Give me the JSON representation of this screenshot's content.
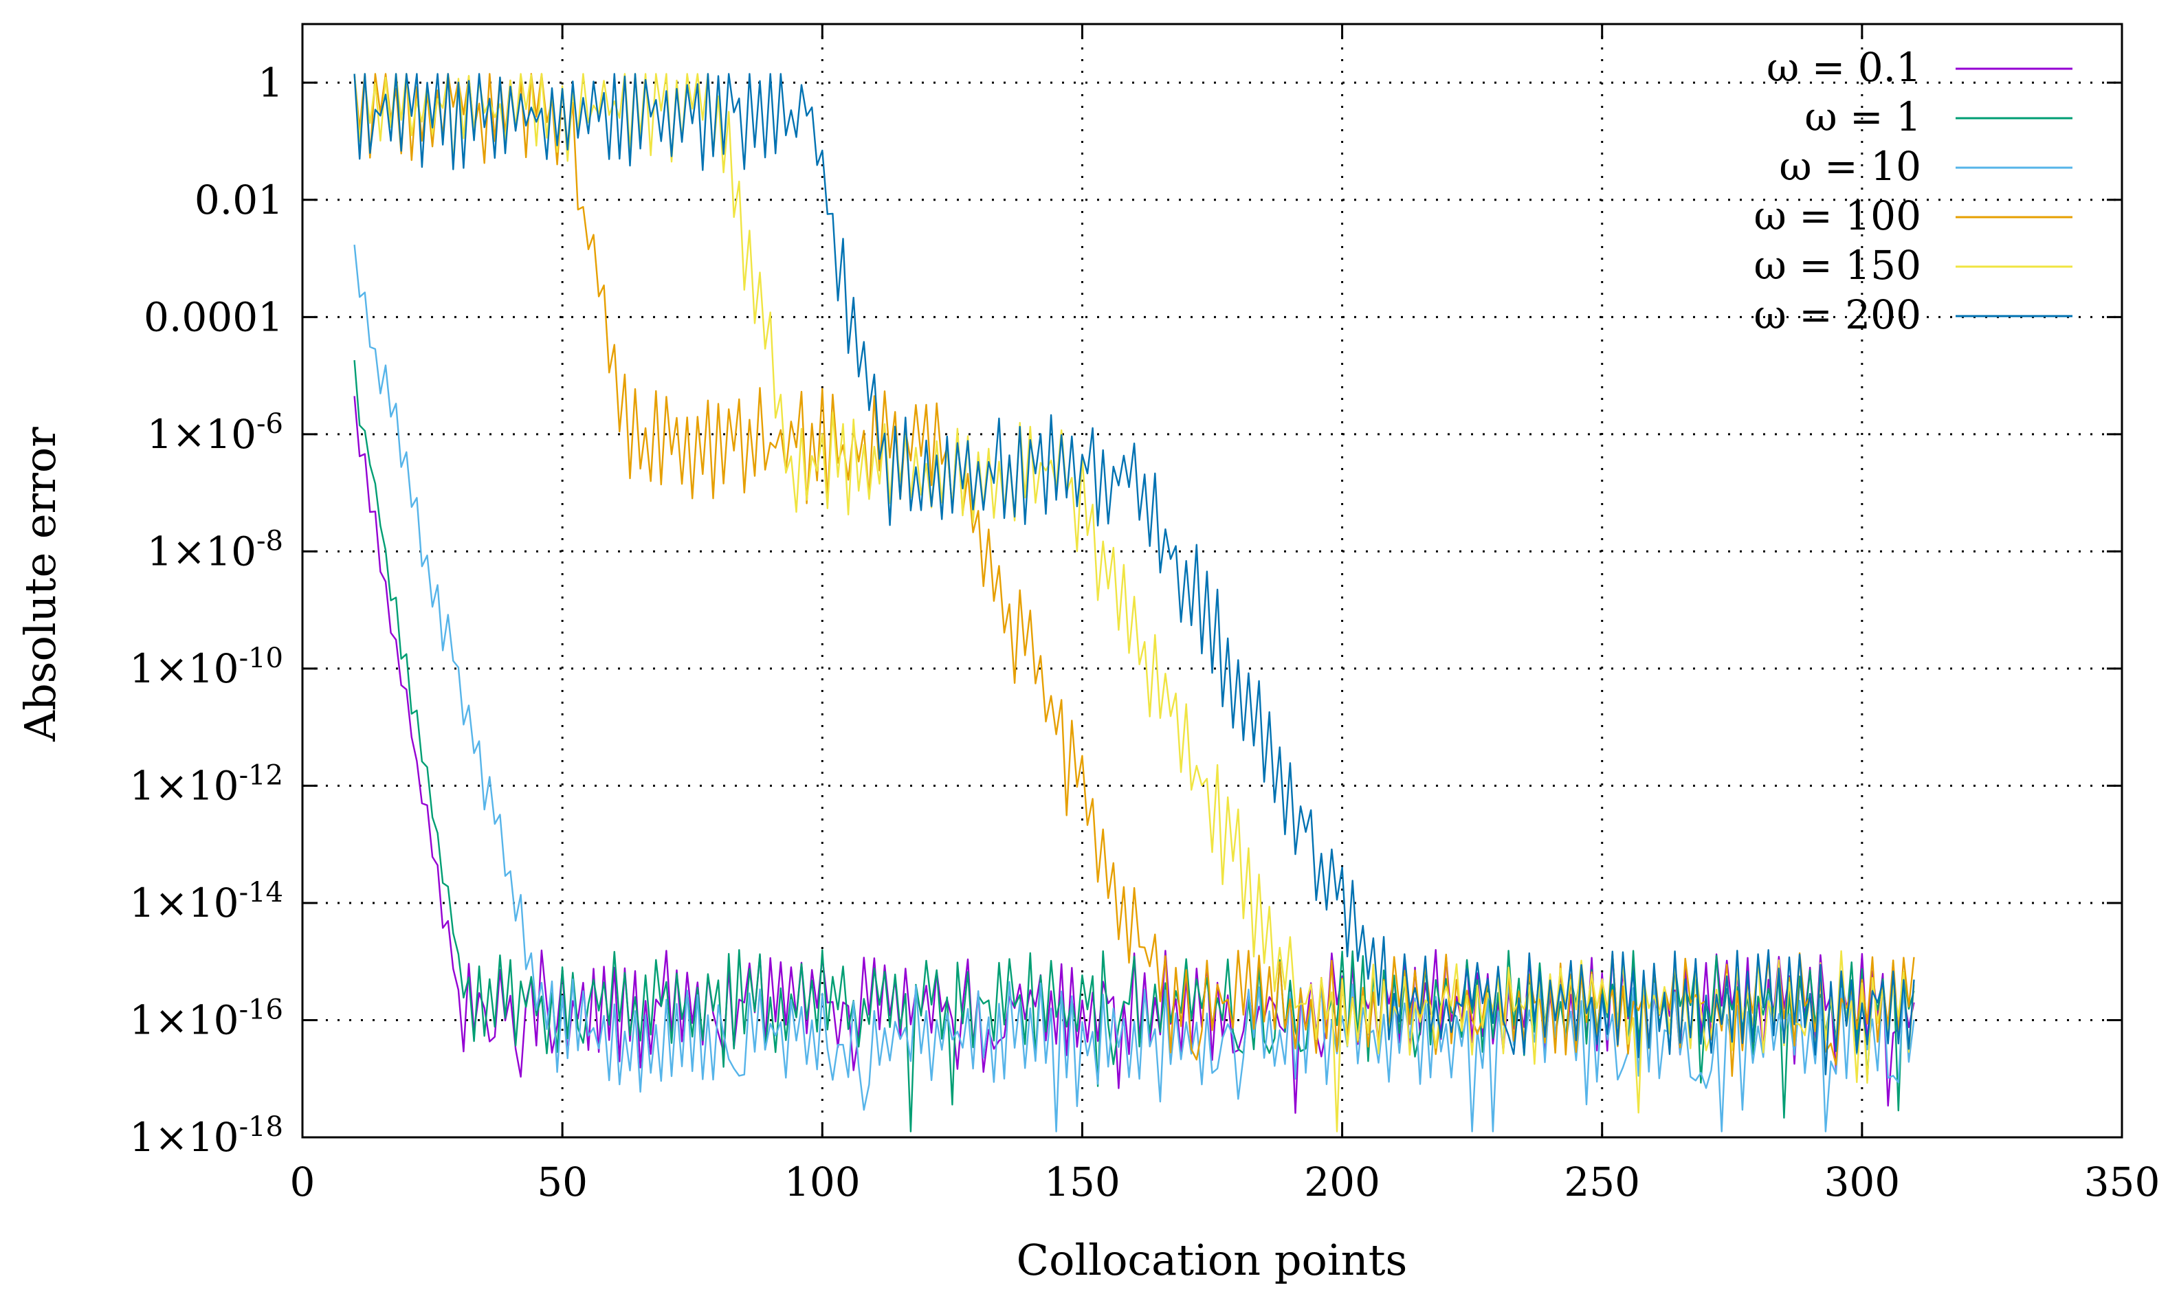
{
  "chart_data": {
    "type": "line",
    "title": "",
    "xlabel": "Collocation points",
    "ylabel": "Absolute error",
    "xlim": [
      0,
      350
    ],
    "ylim": [
      1e-18,
      10
    ],
    "yscale": "log",
    "grid": true,
    "legend_position": "top-right",
    "x_ticks": [
      {
        "value": 0,
        "label": "0"
      },
      {
        "value": 50,
        "label": "50"
      },
      {
        "value": 100,
        "label": "100"
      },
      {
        "value": 150,
        "label": "150"
      },
      {
        "value": 200,
        "label": "200"
      },
      {
        "value": 250,
        "label": "250"
      },
      {
        "value": 300,
        "label": "300"
      },
      {
        "value": 350,
        "label": "350"
      }
    ],
    "y_ticks": [
      {
        "value": 1,
        "base": "1",
        "exp": ""
      },
      {
        "value": 0.01,
        "base": "0.01",
        "exp": ""
      },
      {
        "value": 0.0001,
        "base": "0.0001",
        "exp": ""
      },
      {
        "value": 1e-06,
        "base": "1×10",
        "exp": "-6"
      },
      {
        "value": 1e-08,
        "base": "1×10",
        "exp": "-8"
      },
      {
        "value": 1e-10,
        "base": "1×10",
        "exp": "-10"
      },
      {
        "value": 1e-12,
        "base": "1×10",
        "exp": "-12"
      },
      {
        "value": 1e-14,
        "base": "1×10",
        "exp": "-14"
      },
      {
        "value": 1e-16,
        "base": "1×10",
        "exp": "-16"
      },
      {
        "value": 1e-18,
        "base": "1×10",
        "exp": "-18"
      }
    ],
    "series": [
      {
        "name": "ω = 0.1",
        "color": "#9400d3",
        "x_start": 10,
        "x_end": 310,
        "initial_log10": -5.6,
        "decay_per_point": -0.5,
        "floor_log10": -15.7,
        "oscillation": 0.35,
        "plateau_log10": null,
        "drop_start": null,
        "gaps": true
      },
      {
        "name": "ω = 1",
        "color": "#009e73",
        "x_start": 10,
        "x_end": 310,
        "initial_log10": -5.0,
        "decay_per_point": -0.5,
        "floor_log10": -15.7,
        "oscillation": 0.35,
        "plateau_log10": null,
        "drop_start": null,
        "gaps": false
      },
      {
        "name": "ω = 10",
        "color": "#56b4e9",
        "x_start": 10,
        "x_end": 310,
        "initial_log10": -3.2,
        "decay_per_point": -0.35,
        "floor_log10": -16.2,
        "oscillation": 0.55,
        "plateau_log10": null,
        "drop_start": null,
        "gaps": false
      },
      {
        "name": "ω = 100",
        "color": "#e69f00",
        "x_start": 10,
        "x_end": 310,
        "initial_log10": -0.4,
        "decay_per_point": -0.22,
        "floor_log10": -15.7,
        "oscillation": 1.0,
        "plateau_log10": -6.2,
        "drop_start": 50,
        "gaps": false
      },
      {
        "name": "ω = 150",
        "color": "#f0e442",
        "x_start": 10,
        "x_end": 310,
        "initial_log10": -0.4,
        "decay_per_point": -0.2,
        "floor_log10": -15.7,
        "oscillation": 1.0,
        "plateau_log10": -6.6,
        "drop_start": 80,
        "gaps": false
      },
      {
        "name": "ω = 200",
        "color": "#0072b2",
        "x_start": 10,
        "x_end": 310,
        "initial_log10": -0.5,
        "decay_per_point": -0.18,
        "floor_log10": -15.7,
        "oscillation": 1.0,
        "plateau_log10": -6.6,
        "drop_start": 98,
        "gaps": false
      }
    ]
  }
}
